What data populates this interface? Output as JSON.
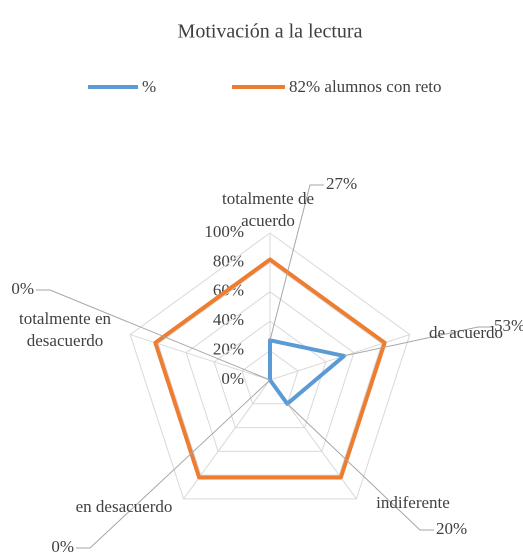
{
  "chart_data": {
    "type": "radar",
    "title": "Motivación a la lectura",
    "categories": [
      "totalmente de acuerdo",
      "de acuerdo",
      "indiferente",
      "en desacuerdo",
      "totalmente en desacuerdo"
    ],
    "series": [
      {
        "name": "%",
        "color": "#5b9bd5",
        "values": [
          27,
          53,
          20,
          0,
          0
        ],
        "value_labels": [
          "27%",
          "53%",
          "20%",
          "0%",
          "0%"
        ]
      },
      {
        "name": "82% alumnos con reto",
        "color": "#ed7d31",
        "values": [
          82,
          82,
          82,
          82,
          82
        ]
      }
    ],
    "ylim": [
      0,
      100
    ],
    "yticks": [
      {
        "value": 0,
        "label": "0%"
      },
      {
        "value": 20,
        "label": "20%"
      },
      {
        "value": 40,
        "label": "40%"
      },
      {
        "value": 60,
        "label": "60%"
      },
      {
        "value": 80,
        "label": "80%"
      },
      {
        "value": 100,
        "label": "100%"
      }
    ],
    "grid": true,
    "legend": "top"
  }
}
